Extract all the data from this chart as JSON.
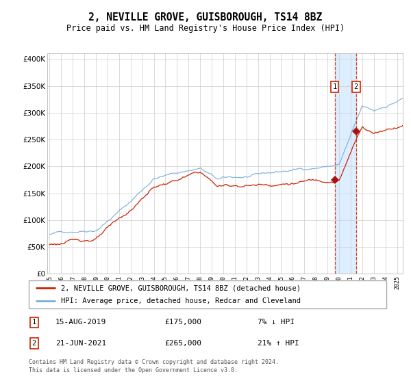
{
  "title": "2, NEVILLE GROVE, GUISBOROUGH, TS14 8BZ",
  "subtitle": "Price paid vs. HM Land Registry's House Price Index (HPI)",
  "legend_line1": "2, NEVILLE GROVE, GUISBOROUGH, TS14 8BZ (detached house)",
  "legend_line2": "HPI: Average price, detached house, Redcar and Cleveland",
  "sale1_date": "15-AUG-2019",
  "sale1_price": 175000,
  "sale1_hpi": "7% ↓ HPI",
  "sale2_date": "21-JUN-2021",
  "sale2_price": 265000,
  "sale2_hpi": "21% ↑ HPI",
  "footnote": "Contains HM Land Registry data © Crown copyright and database right 2024.\nThis data is licensed under the Open Government Licence v3.0.",
  "hpi_color": "#7aaddc",
  "price_color": "#cc2200",
  "marker_color": "#aa1111",
  "sale1_year": 2019.62,
  "sale2_year": 2021.47,
  "ylim": [
    0,
    410000
  ],
  "yticks": [
    0,
    50000,
    100000,
    150000,
    200000,
    250000,
    300000,
    350000,
    400000
  ],
  "start_year": 1995,
  "end_year": 2025.5,
  "background_color": "#ffffff",
  "grid_color": "#cccccc",
  "highlight_color": "#ddeeff"
}
